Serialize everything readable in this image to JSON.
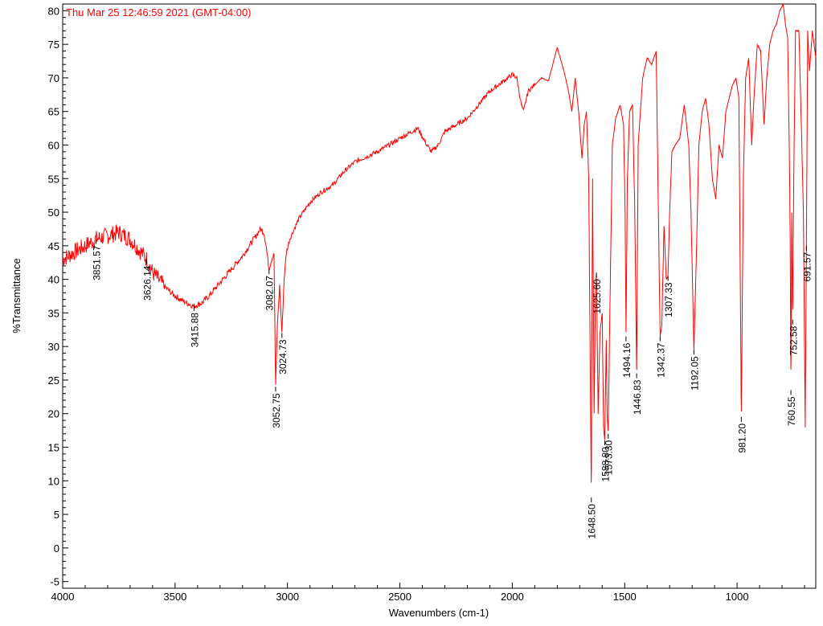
{
  "chart_data": {
    "type": "line",
    "timestamp": "Thu Mar 25 12:46:59 2021 (GMT-04:00)",
    "xlabel": "Wavenumbers (cm-1)",
    "ylabel": "%Transmittance",
    "xlim": [
      4000,
      650
    ],
    "ylim": [
      -6,
      81
    ],
    "x_reversed": true,
    "grid": false,
    "line_color": "#ff0000",
    "timestamp_color": "#ff0000",
    "x_ticks": [
      4000,
      3500,
      3000,
      2500,
      2000,
      1500,
      1000
    ],
    "y_ticks": [
      -5,
      0,
      5,
      10,
      15,
      20,
      25,
      30,
      35,
      40,
      45,
      50,
      55,
      60,
      65,
      70,
      75,
      80
    ],
    "series": [
      {
        "x": [
          4000,
          3950,
          3900,
          3851.57,
          3800,
          3750,
          3700,
          3650,
          3626.14,
          3600,
          3550,
          3500,
          3450,
          3415.88,
          3380,
          3350,
          3300,
          3250,
          3200,
          3150,
          3120,
          3105,
          3095,
          3082.07,
          3070,
          3060,
          3052.75,
          3045,
          3035,
          3024.73,
          3015,
          3005,
          2990,
          2950,
          2900,
          2850,
          2800,
          2750,
          2700,
          2600,
          2500,
          2420,
          2380,
          2360,
          2330,
          2300,
          2200,
          2100,
          2000,
          1980,
          1960,
          1950,
          1930,
          1900,
          1870,
          1840,
          1800,
          1770,
          1750,
          1735,
          1720,
          1705,
          1690,
          1680,
          1670,
          1660,
          1650,
          1648.5,
          1643,
          1636,
          1630,
          1625.6,
          1618,
          1610,
          1600,
          1594,
          1588.8,
          1582,
          1578,
          1573.3,
          1566,
          1555,
          1540,
          1520,
          1505,
          1498,
          1494.16,
          1488,
          1478,
          1465,
          1455,
          1446.83,
          1440,
          1420,
          1400,
          1380,
          1360,
          1350,
          1342.37,
          1335,
          1325,
          1315,
          1307.33,
          1300,
          1290,
          1275,
          1255,
          1235,
          1215,
          1205,
          1192.05,
          1180,
          1170,
          1155,
          1140,
          1125,
          1110,
          1095,
          1080,
          1065,
          1050,
          1035,
          1020,
          1005,
          992,
          981.2,
          972,
          962,
          948,
          935,
          925,
          910,
          895,
          880,
          868,
          855,
          840,
          825,
          810,
          795,
          785,
          775,
          768,
          764,
          760.55,
          757,
          752.58,
          748,
          740,
          725,
          712,
          705,
          697,
          691.57,
          686,
          678,
          665,
          650
        ],
        "y": [
          43,
          44,
          45,
          46,
          46.5,
          47,
          46,
          44,
          43,
          41,
          39,
          37.5,
          36.5,
          36,
          36.5,
          37.5,
          39.5,
          41.5,
          43.5,
          46,
          47.5,
          47,
          45,
          41.5,
          43,
          44,
          24,
          33,
          39,
          32,
          40,
          44,
          46,
          49,
          51.5,
          53,
          54,
          56,
          57.5,
          59,
          61,
          62.5,
          60,
          59,
          60,
          62,
          64,
          68,
          70.5,
          70,
          66,
          65,
          68,
          69,
          70,
          69.5,
          74.5,
          71,
          68,
          65,
          70,
          65,
          58,
          63,
          65,
          55,
          14,
          7.5,
          55,
          20,
          38,
          41,
          20,
          32,
          35,
          18,
          16,
          31,
          20,
          17,
          35,
          60,
          64,
          66,
          63,
          50,
          31.5,
          55,
          65,
          66,
          50,
          26,
          60,
          70,
          73,
          72,
          74,
          50,
          31.5,
          33,
          48,
          40,
          40.5,
          50,
          59,
          60,
          61,
          66,
          60,
          50,
          29.5,
          45,
          60,
          65,
          67,
          63,
          55,
          52,
          60,
          58,
          65,
          67,
          69,
          70,
          67,
          19.5,
          55,
          70,
          73,
          60,
          67,
          75,
          74,
          63,
          70,
          75,
          77,
          78,
          80,
          81,
          78,
          76,
          60,
          47,
          23.5,
          50,
          34,
          55,
          77,
          77,
          60,
          50,
          18,
          45,
          77,
          71,
          77,
          73
        ]
      }
    ],
    "peak_labels": [
      {
        "x": 3851.57,
        "label": "3851.57"
      },
      {
        "x": 3626.14,
        "label": "3626.14"
      },
      {
        "x": 3415.88,
        "label": "3415.88"
      },
      {
        "x": 3082.07,
        "label": "3082.07"
      },
      {
        "x": 3052.75,
        "label": "3052.75"
      },
      {
        "x": 3024.73,
        "label": "3024.73"
      },
      {
        "x": 1648.5,
        "label": "1648.50"
      },
      {
        "x": 1625.6,
        "label": "1625.60"
      },
      {
        "x": 1588.8,
        "label": "1588.80"
      },
      {
        "x": 1573.3,
        "label": "1573.30"
      },
      {
        "x": 1494.16,
        "label": "1494.16"
      },
      {
        "x": 1446.83,
        "label": "1446.83"
      },
      {
        "x": 1342.37,
        "label": "1342.37"
      },
      {
        "x": 1307.33,
        "label": "1307.33"
      },
      {
        "x": 1192.05,
        "label": "1192.05"
      },
      {
        "x": 981.2,
        "label": "981.20"
      },
      {
        "x": 760.55,
        "label": "760.55"
      },
      {
        "x": 752.58,
        "label": "752.58"
      },
      {
        "x": 691.57,
        "label": "691.57"
      }
    ]
  }
}
